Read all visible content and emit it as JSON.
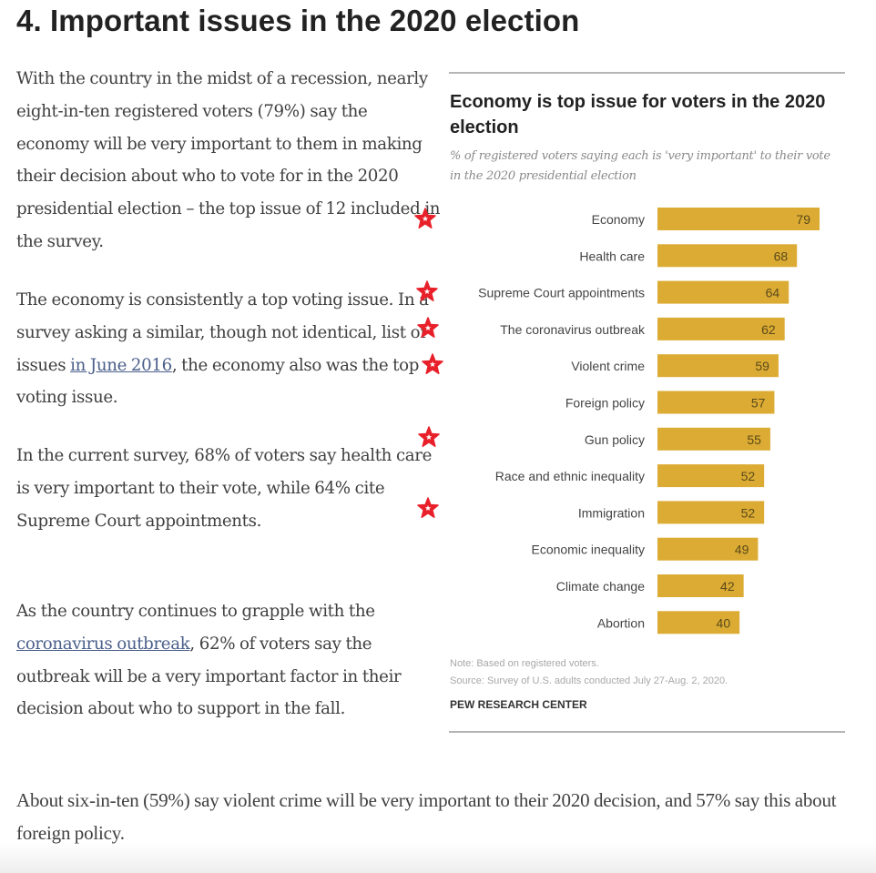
{
  "page": {
    "title": "4. Important issues in the 2020 election"
  },
  "paragraphs": {
    "p1": "With the country in the midst of a recession, nearly eight-in-ten registered voters (79%) say the economy will be very important to them in making their decision about who to vote for in the 2020 presidential election – the top issue of 12 included in the survey.",
    "p2_before": "The economy is consistently a top voting issue. In a survey asking a similar, though not identical, list of issues ",
    "p2_link": "in June 2016",
    "p2_after": ", the economy also was the top voting issue.",
    "p3": "In the current survey, 68% of voters say health care is very important to their vote, while 64% cite Supreme Court appointments.",
    "p4_before": "As the country continues to grapple with the ",
    "p4_link": "coronavirus outbreak",
    "p4_after": ", 62% of voters say the outbreak will be a very important factor in their decision about who to support in the fall.",
    "p5": "About six-in-ten (59%) say violent crime will be very important to their 2020 decision, and 57% say this about foreign policy."
  },
  "annotations": {
    "star_icon": "red-star-marker",
    "star_color": "#e8202a",
    "count": 6
  },
  "colors": {
    "bar": "#dcab33",
    "link": "#4a5f8a"
  },
  "chart_data": {
    "type": "bar",
    "orientation": "horizontal",
    "title": "Economy is top issue for voters in the 2020 election",
    "subtitle": "% of registered voters saying each is 'very important' to their vote in the 2020 presidential election",
    "categories": [
      "Economy",
      "Health care",
      "Supreme Court appointments",
      "The coronavirus outbreak",
      "Violent crime",
      "Foreign policy",
      "Gun policy",
      "Race and ethnic inequality",
      "Immigration",
      "Economic inequality",
      "Climate change",
      "Abortion"
    ],
    "values": [
      79,
      68,
      64,
      62,
      59,
      57,
      55,
      52,
      52,
      49,
      42,
      40
    ],
    "xlabel": "",
    "ylabel": "",
    "xlim": [
      0,
      100
    ],
    "grid": false,
    "legend": "none",
    "note": "Note: Based on registered voters.",
    "source": "Source: Survey of U.S. adults conducted July 27-Aug. 2, 2020.",
    "brand": "PEW RESEARCH CENTER"
  }
}
